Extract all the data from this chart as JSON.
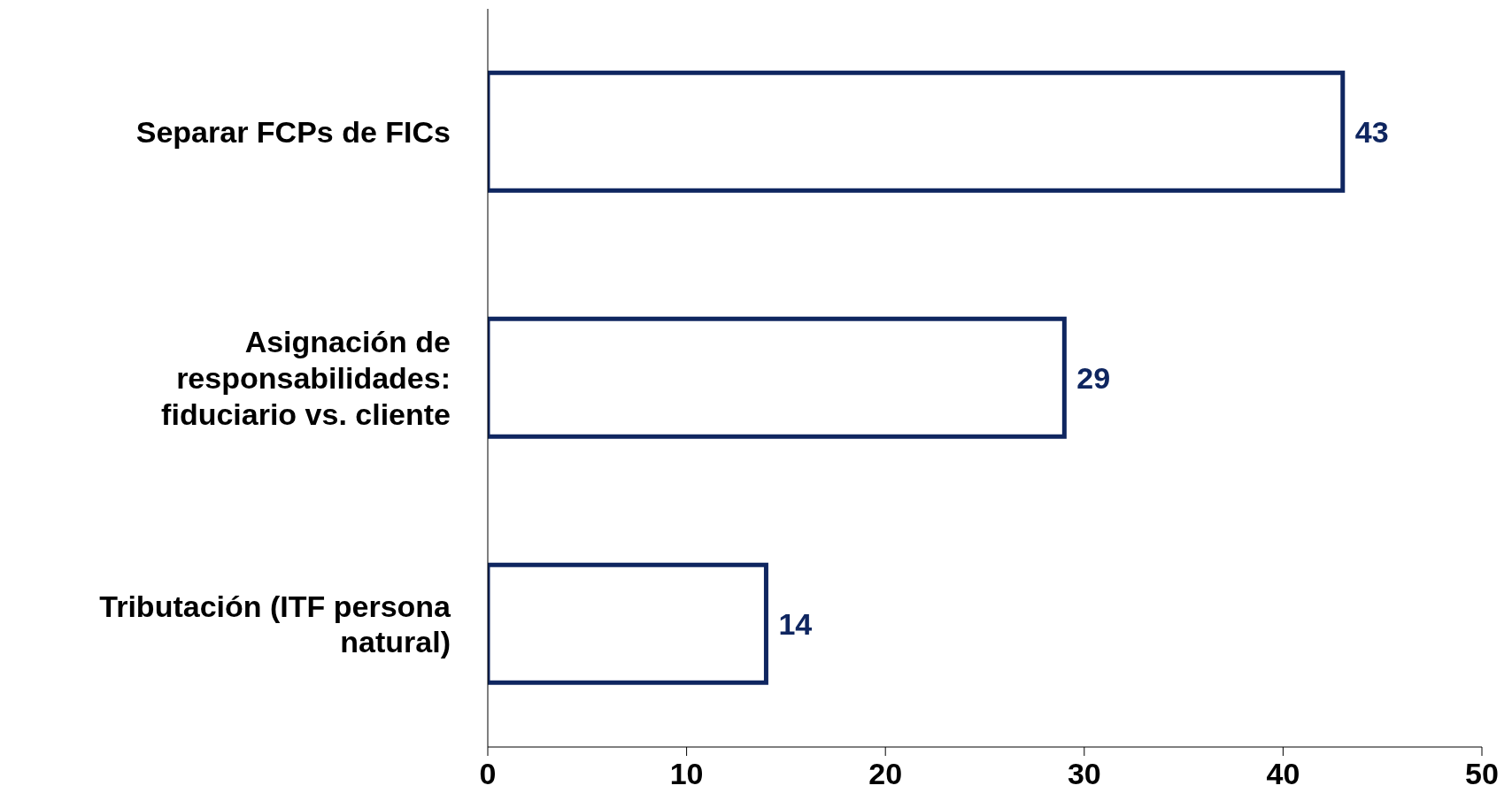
{
  "chart_data": {
    "type": "bar",
    "orientation": "horizontal",
    "categories": [
      "Separar FCPs de FICs",
      "Asignación de responsabilidades: fiduciario vs. cliente",
      "Tributación (ITF persona natural)"
    ],
    "series": [
      {
        "color": "#0f2660",
        "values": [
          43,
          29,
          14
        ]
      }
    ],
    "xlim": [
      0,
      50
    ],
    "xticks": [
      0,
      10,
      20,
      30,
      40,
      50
    ],
    "grid": false,
    "legend": false,
    "data_labels": true
  }
}
